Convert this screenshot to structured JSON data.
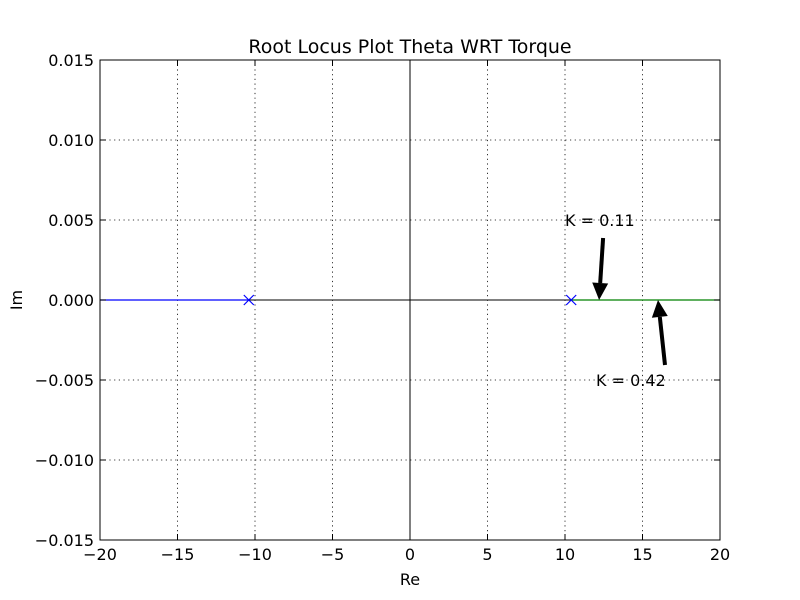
{
  "chart_data": {
    "type": "line",
    "title": "Root Locus Plot Theta WRT Torque",
    "xlabel": "Re",
    "ylabel": "Im",
    "xlim": [
      -20,
      20
    ],
    "ylim": [
      -0.015,
      0.015
    ],
    "grid": true,
    "xticks": [
      "−20",
      "−15",
      "−10",
      "−5",
      "0",
      "5",
      "10",
      "15",
      "20"
    ],
    "xtick_values": [
      -20,
      -15,
      -10,
      -5,
      0,
      5,
      10,
      15,
      20
    ],
    "yticks": [
      "−0.015",
      "−0.010",
      "−0.005",
      "0.000",
      "0.005",
      "0.010",
      "0.015"
    ],
    "ytick_values": [
      -0.015,
      -0.01,
      -0.005,
      0,
      0.005,
      0.01,
      0.015
    ],
    "series": [
      {
        "color": "#0000ff",
        "x": [
          -20,
          -10.4
        ],
        "y": [
          0,
          0
        ]
      },
      {
        "color": "#008000",
        "x": [
          10.4,
          20
        ],
        "y": [
          0,
          0
        ]
      }
    ],
    "poles": {
      "color": "#0000ff",
      "x": [
        -10.4,
        10.4
      ],
      "y": [
        0,
        0
      ]
    },
    "annotations": [
      {
        "text": "K = 0.11",
        "point": [
          12.2,
          0.0
        ],
        "text_pos": [
          10.0,
          0.005
        ]
      },
      {
        "text": "K = 0.42",
        "point": [
          16.0,
          0.0
        ],
        "text_pos": [
          12.0,
          -0.005
        ]
      }
    ]
  }
}
